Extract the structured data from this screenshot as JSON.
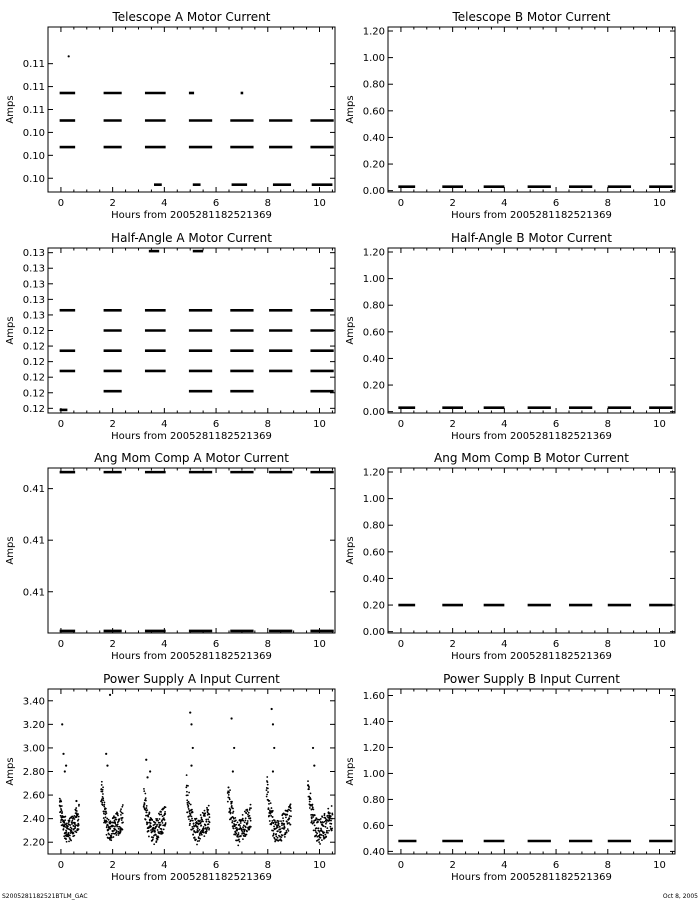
{
  "footer": {
    "left": "S2005281182521BTLM_GAC",
    "right": "Oct 8, 2005"
  },
  "chart_data": [
    {
      "type": "scatter",
      "title": "Telescope A Motor Current",
      "xlabel": "Hours from 2005281182521369",
      "ylabel": "Amps",
      "xlim": [
        -0.5,
        10.6
      ],
      "xticks": [
        0,
        2,
        4,
        6,
        8,
        10
      ],
      "xtick_labels": [
        "0",
        "2",
        "4",
        "6",
        "8",
        "10"
      ],
      "ylim": [
        0.0975,
        0.1155
      ],
      "yticks": [
        0.099,
        0.1015,
        0.104,
        0.1065,
        0.109,
        0.1115
      ],
      "ytick_labels": [
        "0.10",
        "0.10",
        "0.10",
        "0.11",
        "0.11",
        "0.11"
      ],
      "points": [
        [
          0.3,
          0.1123
        ]
      ],
      "segments": [
        {
          "x": [
            -0.05,
            0.55
          ],
          "y": 0.1024
        },
        {
          "x": [
            1.65,
            2.35
          ],
          "y": 0.1024
        },
        {
          "x": [
            3.25,
            4.05
          ],
          "y": 0.1024
        },
        {
          "x": [
            4.95,
            5.85
          ],
          "y": 0.1024
        },
        {
          "x": [
            6.55,
            7.45
          ],
          "y": 0.1024
        },
        {
          "x": [
            8.05,
            8.95
          ],
          "y": 0.1024
        },
        {
          "x": [
            9.65,
            10.55
          ],
          "y": 0.1024
        },
        {
          "x": [
            -0.05,
            0.55
          ],
          "y": 0.1053
        },
        {
          "x": [
            1.65,
            2.35
          ],
          "y": 0.1053
        },
        {
          "x": [
            3.25,
            4.05
          ],
          "y": 0.1053
        },
        {
          "x": [
            4.95,
            5.85
          ],
          "y": 0.1053
        },
        {
          "x": [
            6.55,
            7.45
          ],
          "y": 0.1053
        },
        {
          "x": [
            8.05,
            8.95
          ],
          "y": 0.1053
        },
        {
          "x": [
            9.65,
            10.55
          ],
          "y": 0.1053
        },
        {
          "x": [
            -0.05,
            0.55
          ],
          "y": 0.1083
        },
        {
          "x": [
            1.65,
            2.35
          ],
          "y": 0.1083
        },
        {
          "x": [
            3.25,
            4.05
          ],
          "y": 0.1083
        },
        {
          "x": [
            4.95,
            5.15
          ],
          "y": 0.1083
        },
        {
          "x": [
            6.95,
            7.05
          ],
          "y": 0.1083
        },
        {
          "x": [
            3.6,
            3.9
          ],
          "y": 0.0983
        },
        {
          "x": [
            5.1,
            5.4
          ],
          "y": 0.0983
        },
        {
          "x": [
            6.6,
            7.2
          ],
          "y": 0.0983
        },
        {
          "x": [
            8.2,
            8.9
          ],
          "y": 0.0983
        },
        {
          "x": [
            9.7,
            10.5
          ],
          "y": 0.0983
        }
      ]
    },
    {
      "type": "scatter",
      "title": "Telescope B Motor Current",
      "xlabel": "Hours from 2005281182521369",
      "ylabel": "Amps",
      "xlim": [
        -0.5,
        10.6
      ],
      "xticks": [
        0,
        2,
        4,
        6,
        8,
        10
      ],
      "xtick_labels": [
        "0",
        "2",
        "4",
        "6",
        "8",
        "10"
      ],
      "ylim": [
        -0.01,
        1.23
      ],
      "yticks": [
        0,
        0.2,
        0.4,
        0.6,
        0.8,
        1.0,
        1.2
      ],
      "ytick_labels": [
        "0.00",
        "0.20",
        "0.40",
        "0.60",
        "0.80",
        "1.00",
        "1.20"
      ],
      "points": [],
      "segments": [
        {
          "x": [
            -0.1,
            0.55
          ],
          "y": 0.03
        },
        {
          "x": [
            1.6,
            2.4
          ],
          "y": 0.03
        },
        {
          "x": [
            3.2,
            4.0
          ],
          "y": 0.03
        },
        {
          "x": [
            4.9,
            5.8
          ],
          "y": 0.03
        },
        {
          "x": [
            6.5,
            7.4
          ],
          "y": 0.03
        },
        {
          "x": [
            8.0,
            8.9
          ],
          "y": 0.03
        },
        {
          "x": [
            9.6,
            10.5
          ],
          "y": 0.03
        }
      ]
    },
    {
      "type": "scatter",
      "title": "Half-Angle A Motor Current",
      "xlabel": "Hours from 2005281182521369",
      "ylabel": "Amps",
      "xlim": [
        -0.5,
        10.6
      ],
      "xticks": [
        0,
        2,
        4,
        6,
        8,
        10
      ],
      "xtick_labels": [
        "0",
        "2",
        "4",
        "6",
        "8",
        "10"
      ],
      "ylim": [
        0.1192,
        0.1298
      ],
      "yticks": [
        0.1195,
        0.1205,
        0.1215,
        0.1225,
        0.1235,
        0.1245,
        0.1255,
        0.1265,
        0.1275,
        0.1285,
        0.1295
      ],
      "ytick_labels": [
        "0.12",
        "0.12",
        "0.12",
        "0.12",
        "0.12",
        "0.12",
        "0.13",
        "0.13",
        "0.13",
        "0.13",
        "0.13"
      ],
      "points": [],
      "segments": [
        {
          "x": [
            -0.05,
            0.25
          ],
          "y": 0.1194
        },
        {
          "x": [
            1.65,
            2.35
          ],
          "y": 0.1206
        },
        {
          "x": [
            4.95,
            5.85
          ],
          "y": 0.1206
        },
        {
          "x": [
            6.55,
            7.45
          ],
          "y": 0.1206
        },
        {
          "x": [
            9.65,
            10.55
          ],
          "y": 0.1206
        },
        {
          "x": [
            -0.05,
            0.55
          ],
          "y": 0.1219
        },
        {
          "x": [
            1.65,
            2.35
          ],
          "y": 0.1219
        },
        {
          "x": [
            3.25,
            4.05
          ],
          "y": 0.1219
        },
        {
          "x": [
            4.95,
            5.85
          ],
          "y": 0.1219
        },
        {
          "x": [
            6.55,
            7.45
          ],
          "y": 0.1219
        },
        {
          "x": [
            8.05,
            8.95
          ],
          "y": 0.1219
        },
        {
          "x": [
            9.65,
            10.55
          ],
          "y": 0.1219
        },
        {
          "x": [
            -0.05,
            0.55
          ],
          "y": 0.1232
        },
        {
          "x": [
            1.65,
            2.35
          ],
          "y": 0.1232
        },
        {
          "x": [
            3.25,
            4.05
          ],
          "y": 0.1232
        },
        {
          "x": [
            4.95,
            5.85
          ],
          "y": 0.1232
        },
        {
          "x": [
            6.55,
            7.45
          ],
          "y": 0.1232
        },
        {
          "x": [
            8.05,
            8.95
          ],
          "y": 0.1232
        },
        {
          "x": [
            9.65,
            10.55
          ],
          "y": 0.1232
        },
        {
          "x": [
            1.65,
            2.35
          ],
          "y": 0.1245
        },
        {
          "x": [
            3.25,
            4.05
          ],
          "y": 0.1245
        },
        {
          "x": [
            4.95,
            5.85
          ],
          "y": 0.1245
        },
        {
          "x": [
            6.55,
            7.45
          ],
          "y": 0.1245
        },
        {
          "x": [
            8.05,
            8.95
          ],
          "y": 0.1245
        },
        {
          "x": [
            9.65,
            10.55
          ],
          "y": 0.1245
        },
        {
          "x": [
            -0.05,
            0.55
          ],
          "y": 0.1258
        },
        {
          "x": [
            1.65,
            2.35
          ],
          "y": 0.1258
        },
        {
          "x": [
            3.25,
            4.05
          ],
          "y": 0.1258
        },
        {
          "x": [
            4.95,
            5.85
          ],
          "y": 0.1258
        },
        {
          "x": [
            6.55,
            7.45
          ],
          "y": 0.1258
        },
        {
          "x": [
            8.05,
            8.95
          ],
          "y": 0.1258
        },
        {
          "x": [
            9.65,
            10.55
          ],
          "y": 0.1258
        },
        {
          "x": [
            3.4,
            3.8
          ],
          "y": 0.1296
        },
        {
          "x": [
            5.1,
            5.5
          ],
          "y": 0.1296
        }
      ]
    },
    {
      "type": "scatter",
      "title": "Half-Angle B Motor Current",
      "xlabel": "Hours from 2005281182521369",
      "ylabel": "Amps",
      "xlim": [
        -0.5,
        10.6
      ],
      "xticks": [
        0,
        2,
        4,
        6,
        8,
        10
      ],
      "xtick_labels": [
        "0",
        "2",
        "4",
        "6",
        "8",
        "10"
      ],
      "ylim": [
        -0.01,
        1.23
      ],
      "yticks": [
        0,
        0.2,
        0.4,
        0.6,
        0.8,
        1.0,
        1.2
      ],
      "ytick_labels": [
        "0.00",
        "0.20",
        "0.40",
        "0.60",
        "0.80",
        "1.00",
        "1.20"
      ],
      "points": [],
      "segments": [
        {
          "x": [
            -0.1,
            0.55
          ],
          "y": 0.03
        },
        {
          "x": [
            1.6,
            2.4
          ],
          "y": 0.03
        },
        {
          "x": [
            3.2,
            4.0
          ],
          "y": 0.03
        },
        {
          "x": [
            4.9,
            5.8
          ],
          "y": 0.03
        },
        {
          "x": [
            6.5,
            7.4
          ],
          "y": 0.03
        },
        {
          "x": [
            8.0,
            8.9
          ],
          "y": 0.03
        },
        {
          "x": [
            9.6,
            10.5
          ],
          "y": 0.03
        }
      ]
    },
    {
      "type": "scatter",
      "title": "Ang Mom Comp A Motor Current",
      "xlabel": "Hours from 2005281182521369",
      "ylabel": "Amps",
      "xlim": [
        -0.5,
        10.6
      ],
      "xticks": [
        0,
        2,
        4,
        6,
        8,
        10
      ],
      "xtick_labels": [
        "0",
        "2",
        "4",
        "6",
        "8",
        "10"
      ],
      "ylim": [
        0.4045,
        0.4125
      ],
      "yticks": [
        0.4065,
        0.409,
        0.4115
      ],
      "ytick_labels": [
        "0.41",
        "0.41",
        "0.41"
      ],
      "points": [],
      "segments": [
        {
          "x": [
            -0.05,
            0.55
          ],
          "y": 0.4123
        },
        {
          "x": [
            1.65,
            2.35
          ],
          "y": 0.4123
        },
        {
          "x": [
            3.25,
            4.05
          ],
          "y": 0.4123
        },
        {
          "x": [
            4.95,
            5.85
          ],
          "y": 0.4123
        },
        {
          "x": [
            6.55,
            7.45
          ],
          "y": 0.4123
        },
        {
          "x": [
            8.05,
            8.95
          ],
          "y": 0.4123
        },
        {
          "x": [
            9.65,
            10.55
          ],
          "y": 0.4123
        },
        {
          "x": [
            -0.05,
            0.55
          ],
          "y": 0.4046
        },
        {
          "x": [
            1.65,
            2.35
          ],
          "y": 0.4046
        },
        {
          "x": [
            3.25,
            4.05
          ],
          "y": 0.4046
        },
        {
          "x": [
            4.95,
            5.85
          ],
          "y": 0.4046
        },
        {
          "x": [
            6.55,
            7.45
          ],
          "y": 0.4046
        },
        {
          "x": [
            8.05,
            8.95
          ],
          "y": 0.4046
        },
        {
          "x": [
            9.65,
            10.55
          ],
          "y": 0.4046
        }
      ]
    },
    {
      "type": "scatter",
      "title": "Ang Mom Comp B Motor Current",
      "xlabel": "Hours from 2005281182521369",
      "ylabel": "Amps",
      "xlim": [
        -0.5,
        10.6
      ],
      "xticks": [
        0,
        2,
        4,
        6,
        8,
        10
      ],
      "xtick_labels": [
        "0",
        "2",
        "4",
        "6",
        "8",
        "10"
      ],
      "ylim": [
        -0.01,
        1.23
      ],
      "yticks": [
        0,
        0.2,
        0.4,
        0.6,
        0.8,
        1.0,
        1.2
      ],
      "ytick_labels": [
        "0.00",
        "0.20",
        "0.40",
        "0.60",
        "0.80",
        "1.00",
        "1.20"
      ],
      "points": [],
      "segments": [
        {
          "x": [
            -0.1,
            0.55
          ],
          "y": 0.2
        },
        {
          "x": [
            1.6,
            2.4
          ],
          "y": 0.2
        },
        {
          "x": [
            3.2,
            4.0
          ],
          "y": 0.2
        },
        {
          "x": [
            4.9,
            5.8
          ],
          "y": 0.2
        },
        {
          "x": [
            6.5,
            7.4
          ],
          "y": 0.2
        },
        {
          "x": [
            8.0,
            8.9
          ],
          "y": 0.2
        },
        {
          "x": [
            9.6,
            10.5
          ],
          "y": 0.2
        }
      ]
    },
    {
      "type": "scatter",
      "title": "Power Supply A Input Current",
      "xlabel": "Hours from 2005281182521369",
      "ylabel": "Amps",
      "xlim": [
        -0.5,
        10.6
      ],
      "xticks": [
        0,
        2,
        4,
        6,
        8,
        10
      ],
      "xtick_labels": [
        "0",
        "2",
        "4",
        "6",
        "8",
        "10"
      ],
      "ylim": [
        2.1,
        3.5
      ],
      "yticks": [
        2.2,
        2.4,
        2.6,
        2.8,
        3.0,
        3.2,
        3.4
      ],
      "ytick_labels": [
        "2.20",
        "2.40",
        "2.60",
        "2.80",
        "3.00",
        "3.20",
        "3.40"
      ],
      "orbits": [
        {
          "start": -0.05,
          "peak": 2.55,
          "len": 0.75
        },
        {
          "start": 1.55,
          "peak": 2.75,
          "len": 0.85
        },
        {
          "start": 3.2,
          "peak": 2.65,
          "len": 0.85
        },
        {
          "start": 4.85,
          "peak": 2.75,
          "len": 0.9
        },
        {
          "start": 6.45,
          "peak": 2.75,
          "len": 0.9
        },
        {
          "start": 7.95,
          "peak": 2.75,
          "len": 0.95
        },
        {
          "start": 9.55,
          "peak": 2.75,
          "len": 0.95
        }
      ],
      "points": [
        [
          0.05,
          3.2
        ],
        [
          0.1,
          2.95
        ],
        [
          0.15,
          2.8
        ],
        [
          0.2,
          2.85
        ],
        [
          0.6,
          2.55
        ],
        [
          1.75,
          2.95
        ],
        [
          1.9,
          3.45
        ],
        [
          1.8,
          2.85
        ],
        [
          3.3,
          2.9
        ],
        [
          3.45,
          2.8
        ],
        [
          3.35,
          2.75
        ],
        [
          5.0,
          3.3
        ],
        [
          5.05,
          3.2
        ],
        [
          5.1,
          3.0
        ],
        [
          5.05,
          2.85
        ],
        [
          6.6,
          3.25
        ],
        [
          6.7,
          3.0
        ],
        [
          6.65,
          2.8
        ],
        [
          8.15,
          3.33
        ],
        [
          8.2,
          3.2
        ],
        [
          8.25,
          3.0
        ],
        [
          8.2,
          2.8
        ],
        [
          9.75,
          3.0
        ],
        [
          9.8,
          2.85
        ]
      ],
      "segments": []
    },
    {
      "type": "scatter",
      "title": "Power Supply B Input Current",
      "xlabel": "Hours from 2005281182521369",
      "ylabel": "Amps",
      "xlim": [
        -0.5,
        10.6
      ],
      "xticks": [
        0,
        2,
        4,
        6,
        8,
        10
      ],
      "xtick_labels": [
        "0",
        "2",
        "4",
        "6",
        "8",
        "10"
      ],
      "ylim": [
        0.38,
        1.65
      ],
      "yticks": [
        0.4,
        0.6,
        0.8,
        1.0,
        1.2,
        1.4,
        1.6
      ],
      "ytick_labels": [
        "0.40",
        "0.60",
        "0.80",
        "1.00",
        "1.20",
        "1.40",
        "1.60"
      ],
      "points": [],
      "segments": [
        {
          "x": [
            -0.1,
            0.6
          ],
          "y": 0.48
        },
        {
          "x": [
            1.6,
            2.4
          ],
          "y": 0.48
        },
        {
          "x": [
            3.2,
            4.0
          ],
          "y": 0.48
        },
        {
          "x": [
            4.9,
            5.8
          ],
          "y": 0.48
        },
        {
          "x": [
            6.5,
            7.4
          ],
          "y": 0.48
        },
        {
          "x": [
            8.0,
            8.9
          ],
          "y": 0.48
        },
        {
          "x": [
            9.6,
            10.5
          ],
          "y": 0.48
        }
      ]
    }
  ]
}
